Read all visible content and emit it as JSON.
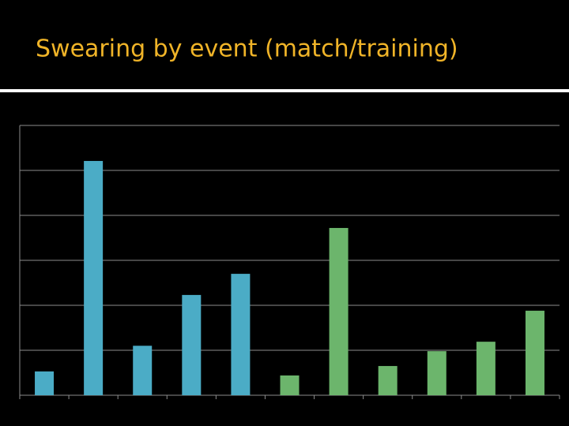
{
  "chart_data": {
    "type": "bar",
    "title": "Swearing by event (match/training)",
    "categories": [
      null,
      null,
      null,
      null,
      null,
      null,
      null,
      null,
      null,
      null,
      null
    ],
    "values": [
      0.53,
      5.21,
      1.1,
      2.23,
      2.7,
      0.44,
      3.72,
      0.65,
      0.98,
      1.19,
      1.88
    ],
    "colors": [
      "#4bacc6",
      "#4bacc6",
      "#4bacc6",
      "#4bacc6",
      "#4bacc6",
      "#6cb56c",
      "#6cb56c",
      "#6cb56c",
      "#6cb56c",
      "#6cb56c",
      "#6cb56c"
    ],
    "ylim": [
      0,
      6
    ],
    "yticks": [
      0,
      1,
      2,
      3,
      4,
      5,
      6
    ],
    "grid": true
  }
}
